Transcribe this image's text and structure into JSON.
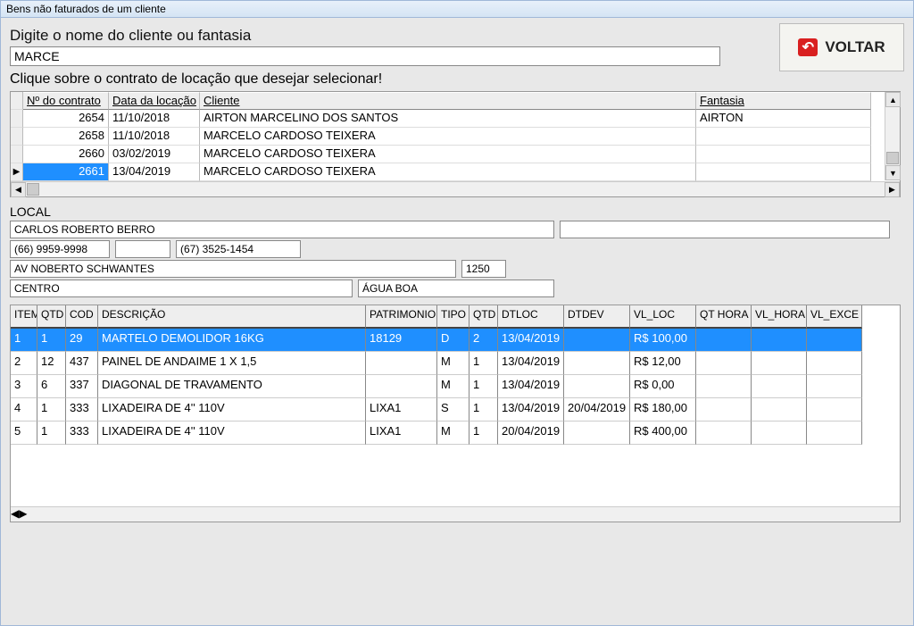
{
  "window": {
    "title": "Bens não faturados de um cliente"
  },
  "search": {
    "prompt": "Digite o nome do cliente ou fantasia",
    "value": "MARCE",
    "instruction": "Clique sobre o contrato de locação que desejar selecionar!"
  },
  "voltar": {
    "label": "VOLTAR"
  },
  "contracts": {
    "headers": {
      "num": "Nº do contrato",
      "date": "Data da locação",
      "client": "Cliente",
      "fantasy": "Fantasia"
    },
    "rows": [
      {
        "num": "2654",
        "date": "11/10/2018",
        "client": "AIRTON MARCELINO DOS SANTOS",
        "fantasy": "AIRTON",
        "selected": false,
        "indicator": ""
      },
      {
        "num": "2658",
        "date": "11/10/2018",
        "client": "MARCELO CARDOSO TEIXERA",
        "fantasy": "",
        "selected": false,
        "indicator": ""
      },
      {
        "num": "2660",
        "date": "03/02/2019",
        "client": "MARCELO CARDOSO TEIXERA",
        "fantasy": "",
        "selected": false,
        "indicator": ""
      },
      {
        "num": "2661",
        "date": "13/04/2019",
        "client": "MARCELO CARDOSO TEIXERA",
        "fantasy": "",
        "selected": true,
        "indicator": "▶"
      }
    ]
  },
  "local": {
    "label": "LOCAL",
    "name": "CARLOS ROBERTO BERRO",
    "extra": "",
    "phone1": "(66) 9959-9998",
    "blank1": "",
    "phone2": "(67) 3525-1454",
    "address": "AV NOBERTO SCHWANTES",
    "addr_num": "1250",
    "district": "CENTRO",
    "city": "ÁGUA BOA"
  },
  "items": {
    "headers": {
      "item": "ITEM",
      "qtd": "QTD",
      "cod": "COD",
      "desc": "DESCRIÇÃO",
      "patr": "PATRIMONIO",
      "tipo": "TIPO",
      "qtd2": "QTD",
      "dtloc": "DTLOC",
      "dtdev": "DTDEV",
      "vlloc": "VL_LOC",
      "qthora": "QT HORA",
      "vlhora": "VL_HORA",
      "vlexce": "VL_EXCE"
    },
    "rows": [
      {
        "item": "1",
        "qtd": "1",
        "cod": "29",
        "desc": "MARTELO DEMOLIDOR 16KG",
        "patr": "18129",
        "tipo": "D",
        "qtd2": "2",
        "dtloc": "13/04/2019",
        "dtdev": "",
        "vlloc": "R$ 100,00",
        "qthora": "",
        "vlhora": "",
        "vlexce": "",
        "selected": true
      },
      {
        "item": "2",
        "qtd": "12",
        "cod": "437",
        "desc": "PAINEL DE ANDAIME 1 X 1,5",
        "patr": "",
        "tipo": "M",
        "qtd2": "1",
        "dtloc": "13/04/2019",
        "dtdev": "",
        "vlloc": "R$ 12,00",
        "qthora": "",
        "vlhora": "",
        "vlexce": "",
        "selected": false
      },
      {
        "item": "3",
        "qtd": "6",
        "cod": "337",
        "desc": "DIAGONAL DE TRAVAMENTO",
        "patr": "",
        "tipo": "M",
        "qtd2": "1",
        "dtloc": "13/04/2019",
        "dtdev": "",
        "vlloc": "R$ 0,00",
        "qthora": "",
        "vlhora": "",
        "vlexce": "",
        "selected": false
      },
      {
        "item": "4",
        "qtd": "1",
        "cod": "333",
        "desc": "LIXADEIRA DE 4'' 110V",
        "patr": "LIXA1",
        "tipo": "S",
        "qtd2": "1",
        "dtloc": "13/04/2019",
        "dtdev": "20/04/2019",
        "vlloc": "R$ 180,00",
        "qthora": "",
        "vlhora": "",
        "vlexce": "",
        "selected": false
      },
      {
        "item": "5",
        "qtd": "1",
        "cod": "333",
        "desc": "LIXADEIRA DE 4'' 110V",
        "patr": "LIXA1",
        "tipo": "M",
        "qtd2": "1",
        "dtloc": "20/04/2019",
        "dtdev": "",
        "vlloc": "R$ 400,00",
        "qthora": "",
        "vlhora": "",
        "vlexce": "",
        "selected": false
      }
    ]
  },
  "colors": {
    "selection": "#1f8fff",
    "bg": "#e8e8e8"
  }
}
